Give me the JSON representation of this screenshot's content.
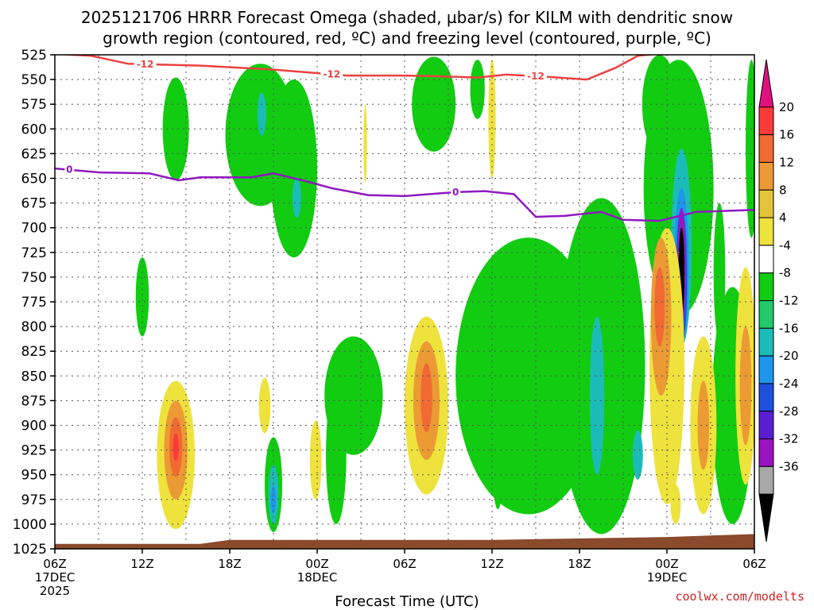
{
  "chart_data": {
    "type": "contour",
    "title_line1": "2025121706 HRRR Forecast Omega (shaded, µbar/s) for KILM with dendritic snow",
    "title_line2": "growth region (contoured, red, ºC) and freezing level (contoured, purple, ºC)",
    "xlabel": "Forecast Time (UTC)",
    "credit": "coolwx.com/modelts",
    "y_levels": [
      525,
      550,
      575,
      600,
      625,
      650,
      675,
      700,
      725,
      750,
      775,
      800,
      825,
      850,
      875,
      900,
      925,
      950,
      975,
      1000,
      1025
    ],
    "x_range_hours": [
      0,
      48
    ],
    "x_ticks": [
      {
        "hour": 0,
        "label": "06Z",
        "sub1": "17DEC",
        "sub2": "2025"
      },
      {
        "hour": 6,
        "label": "12Z"
      },
      {
        "hour": 12,
        "label": "18Z"
      },
      {
        "hour": 18,
        "label": "00Z",
        "sub1": "18DEC"
      },
      {
        "hour": 24,
        "label": "06Z"
      },
      {
        "hour": 30,
        "label": "12Z"
      },
      {
        "hour": 36,
        "label": "18Z"
      },
      {
        "hour": 42,
        "label": "00Z",
        "sub1": "19DEC"
      },
      {
        "hour": 48,
        "label": "06Z"
      }
    ],
    "colorbar": {
      "labels": [
        "20",
        "16",
        "12",
        "8",
        "4",
        "-4",
        "-8",
        "-12",
        "-16",
        "-20",
        "-24",
        "-28",
        "-32",
        "-36"
      ],
      "colors": [
        "#e0117f",
        "#ff3a3a",
        "#f06a32",
        "#ec9a34",
        "#e2c43a",
        "#eee23c",
        "#ffffff",
        "#11cc11",
        "#22c86a",
        "#1bbcb8",
        "#1e96ee",
        "#1e50e0",
        "#5a1ed2",
        "#9a14c2",
        "#a8a8a8",
        "#000000"
      ]
    },
    "dgz_line": {
      "name": "-12 C isotherm (dendritic snow growth)",
      "label": "-12",
      "color": "#ee4040",
      "points": [
        [
          0,
          524
        ],
        [
          2.5,
          526
        ],
        [
          5,
          534
        ],
        [
          10,
          536
        ],
        [
          15,
          540
        ],
        [
          20,
          546
        ],
        [
          24,
          546
        ],
        [
          27,
          547
        ],
        [
          29,
          548
        ],
        [
          31,
          545
        ],
        [
          33.5,
          547
        ],
        [
          36.5,
          550
        ],
        [
          38.5,
          538
        ],
        [
          40,
          526
        ],
        [
          42,
          523
        ],
        [
          48,
          523
        ]
      ]
    },
    "freezing_line": {
      "name": "0 C freezing level",
      "label": "0",
      "color": "#9018c0",
      "points": [
        [
          0,
          640
        ],
        [
          3,
          644
        ],
        [
          6.5,
          645
        ],
        [
          8.5,
          652
        ],
        [
          10,
          649
        ],
        [
          12,
          649
        ],
        [
          13.5,
          649
        ],
        [
          15,
          645
        ],
        [
          17,
          652
        ],
        [
          19,
          660
        ],
        [
          21.5,
          667
        ],
        [
          24,
          668
        ],
        [
          27.5,
          664
        ],
        [
          29.5,
          663
        ],
        [
          31.5,
          666
        ],
        [
          33,
          689
        ],
        [
          35,
          688
        ],
        [
          37.5,
          684
        ],
        [
          39,
          692
        ],
        [
          41.5,
          693
        ],
        [
          44,
          684
        ],
        [
          48,
          682
        ]
      ]
    },
    "omega_regions": [
      {
        "level": -8,
        "color": "#11cc11",
        "cx": 8.3,
        "cy": 600,
        "rx": 0.9,
        "ry": 52
      },
      {
        "level": -8,
        "color": "#11cc11",
        "cx": 6.0,
        "cy": 770,
        "rx": 0.45,
        "ry": 40
      },
      {
        "level": -8,
        "color": "#11cc11",
        "cx": 14.1,
        "cy": 606,
        "rx": 2.4,
        "ry": 72
      },
      {
        "level": -8,
        "color": "#11cc11",
        "cx": 16.4,
        "cy": 640,
        "rx": 1.6,
        "ry": 90
      },
      {
        "level": -12,
        "color": "#1bbcb8",
        "cx": 14.2,
        "cy": 585,
        "rx": 0.3,
        "ry": 22
      },
      {
        "level": -12,
        "color": "#1bbcb8",
        "cx": 16.6,
        "cy": 670,
        "rx": 0.3,
        "ry": 20
      },
      {
        "level": -8,
        "color": "#11cc11",
        "cx": 15.0,
        "cy": 960,
        "rx": 0.6,
        "ry": 48
      },
      {
        "level": -12,
        "color": "#1bbcb8",
        "cx": 15.0,
        "cy": 970,
        "rx": 0.35,
        "ry": 30
      },
      {
        "level": -16,
        "color": "#1e96ee",
        "cx": 15.0,
        "cy": 975,
        "rx": 0.18,
        "ry": 14
      },
      {
        "level": -8,
        "color": "#11cc11",
        "cx": 20.5,
        "cy": 870,
        "rx": 2.0,
        "ry": 60
      },
      {
        "level": -8,
        "color": "#11cc11",
        "cx": 19.3,
        "cy": 930,
        "rx": 0.7,
        "ry": 70
      },
      {
        "level": -8,
        "color": "#11cc11",
        "cx": 26.0,
        "cy": 575,
        "rx": 1.5,
        "ry": 48
      },
      {
        "level": -8,
        "color": "#11cc11",
        "cx": 29.0,
        "cy": 560,
        "rx": 0.5,
        "ry": 30
      },
      {
        "level": -8,
        "color": "#11cc11",
        "cx": 32.5,
        "cy": 850,
        "rx": 5.0,
        "ry": 140
      },
      {
        "level": -8,
        "color": "#11cc11",
        "cx": 30.4,
        "cy": 955,
        "rx": 0.3,
        "ry": 30
      },
      {
        "level": -8,
        "color": "#11cc11",
        "cx": 37.5,
        "cy": 840,
        "rx": 3.0,
        "ry": 170
      },
      {
        "level": -12,
        "color": "#1bbcb8",
        "cx": 37.2,
        "cy": 870,
        "rx": 0.5,
        "ry": 80
      },
      {
        "level": -12,
        "color": "#1bbcb8",
        "cx": 40.0,
        "cy": 930,
        "rx": 0.35,
        "ry": 25
      },
      {
        "level": -8,
        "color": "#11cc11",
        "cx": 41.5,
        "cy": 575,
        "rx": 1.2,
        "ry": 50
      },
      {
        "level": -8,
        "color": "#11cc11",
        "cx": 42.8,
        "cy": 660,
        "rx": 2.4,
        "ry": 130
      },
      {
        "level": -8,
        "color": "#11cc11",
        "cx": 47.8,
        "cy": 620,
        "rx": 0.4,
        "ry": 90
      },
      {
        "level": -8,
        "color": "#11cc11",
        "cx": 45.6,
        "cy": 745,
        "rx": 0.4,
        "ry": 70
      },
      {
        "level": -8,
        "color": "#11cc11",
        "cx": 46.5,
        "cy": 880,
        "rx": 1.4,
        "ry": 120
      },
      {
        "level": -12,
        "color": "#1bbcb8",
        "cx": 43.0,
        "cy": 720,
        "rx": 0.7,
        "ry": 100
      },
      {
        "level": -16,
        "color": "#1e96ee",
        "cx": 43.0,
        "cy": 740,
        "rx": 0.5,
        "ry": 80
      },
      {
        "level": -20,
        "color": "#1e50e0",
        "cx": 43.0,
        "cy": 750,
        "rx": 0.38,
        "ry": 70
      },
      {
        "level": -28,
        "color": "#9a14c2",
        "cx": 43.0,
        "cy": 740,
        "rx": 0.28,
        "ry": 60
      },
      {
        "level": -36,
        "color": "#000000",
        "cx": 43.0,
        "cy": 745,
        "rx": 0.2,
        "ry": 45
      },
      {
        "level": 4,
        "color": "#eee23c",
        "cx": 8.3,
        "cy": 930,
        "rx": 1.3,
        "ry": 75
      },
      {
        "level": 8,
        "color": "#ec9a34",
        "cx": 8.3,
        "cy": 925,
        "rx": 0.8,
        "ry": 50
      },
      {
        "level": 12,
        "color": "#f06a32",
        "cx": 8.3,
        "cy": 922,
        "rx": 0.45,
        "ry": 30
      },
      {
        "level": 16,
        "color": "#ff3a3a",
        "cx": 8.3,
        "cy": 922,
        "rx": 0.2,
        "ry": 14
      },
      {
        "level": 4,
        "color": "#eee23c",
        "cx": 14.4,
        "cy": 880,
        "rx": 0.4,
        "ry": 28
      },
      {
        "level": 4,
        "color": "#eee23c",
        "cx": 17.9,
        "cy": 935,
        "rx": 0.4,
        "ry": 40
      },
      {
        "level": 4,
        "color": "#eee23c",
        "cx": 21.3,
        "cy": 615,
        "rx": 0.12,
        "ry": 40
      },
      {
        "level": 4,
        "color": "#eee23c",
        "cx": 25.5,
        "cy": 880,
        "rx": 1.5,
        "ry": 90
      },
      {
        "level": 8,
        "color": "#ec9a34",
        "cx": 25.5,
        "cy": 875,
        "rx": 0.9,
        "ry": 60
      },
      {
        "level": 12,
        "color": "#f06a32",
        "cx": 25.5,
        "cy": 872,
        "rx": 0.4,
        "ry": 35
      },
      {
        "level": 4,
        "color": "#eee23c",
        "cx": 30.0,
        "cy": 590,
        "rx": 0.25,
        "ry": 60
      },
      {
        "level": 4,
        "color": "#eee23c",
        "cx": 42.0,
        "cy": 840,
        "rx": 1.2,
        "ry": 140
      },
      {
        "level": 8,
        "color": "#ec9a34",
        "cx": 41.6,
        "cy": 790,
        "rx": 0.7,
        "ry": 80
      },
      {
        "level": 12,
        "color": "#f06a32",
        "cx": 41.5,
        "cy": 780,
        "rx": 0.35,
        "ry": 40
      },
      {
        "level": 4,
        "color": "#eee23c",
        "cx": 44.5,
        "cy": 900,
        "rx": 0.9,
        "ry": 90
      },
      {
        "level": 8,
        "color": "#ec9a34",
        "cx": 44.5,
        "cy": 900,
        "rx": 0.4,
        "ry": 45
      },
      {
        "level": 4,
        "color": "#eee23c",
        "cx": 47.4,
        "cy": 850,
        "rx": 0.7,
        "ry": 110
      },
      {
        "level": 8,
        "color": "#ec9a34",
        "cx": 47.4,
        "cy": 860,
        "rx": 0.4,
        "ry": 60
      },
      {
        "level": 4,
        "color": "#eee23c",
        "cx": 42.6,
        "cy": 980,
        "rx": 0.35,
        "ry": 20
      }
    ],
    "terrain": {
      "color": "#8b4a2b",
      "points": [
        [
          0,
          1020
        ],
        [
          10,
          1020
        ],
        [
          12,
          1016
        ],
        [
          30,
          1016
        ],
        [
          34,
          1015
        ],
        [
          42,
          1013
        ],
        [
          46,
          1011
        ],
        [
          48,
          1010
        ]
      ]
    }
  }
}
